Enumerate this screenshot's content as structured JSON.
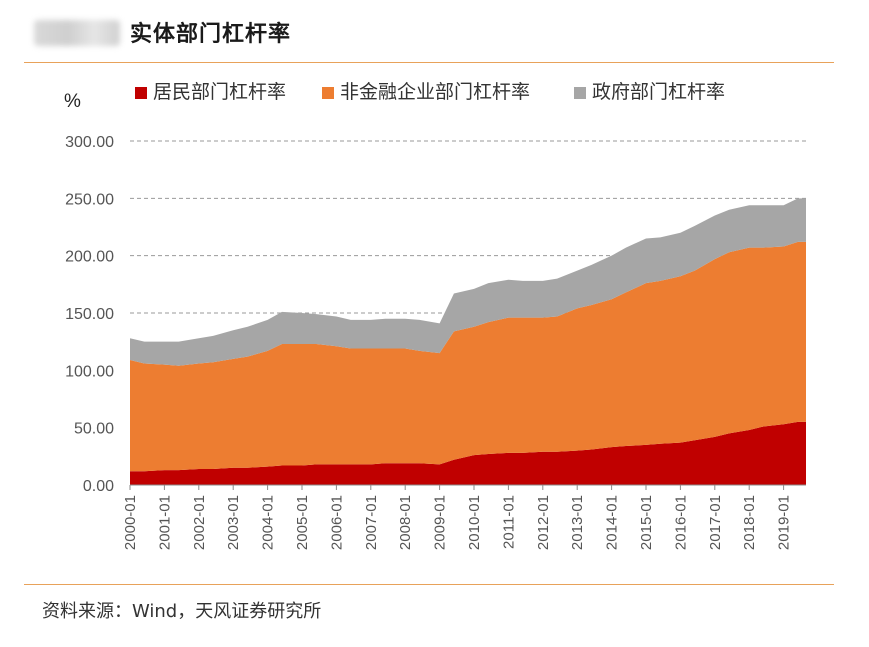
{
  "header": {
    "title": "实体部门杠杆率"
  },
  "source_note": "资料来源：Wind，天风证券研究所",
  "chart_data": {
    "type": "area",
    "stacked": true,
    "unit_label": "%",
    "ylim": [
      0,
      300
    ],
    "yticks": [
      "0.00",
      "50.00",
      "100.00",
      "150.00",
      "200.00",
      "250.00",
      "300.00"
    ],
    "xticks": [
      "2000-01",
      "2001-01",
      "2002-01",
      "2003-01",
      "2004-01",
      "2005-01",
      "2006-01",
      "2007-01",
      "2008-01",
      "2009-01",
      "2010-01",
      "2011-01",
      "2012-01",
      "2013-01",
      "2014-01",
      "2015-01",
      "2016-01",
      "2017-01",
      "2018-01",
      "2019-01"
    ],
    "grid": "horizontal-dashed",
    "legend_position": "top",
    "x": [
      "2000-01",
      "2000-06",
      "2001-01",
      "2001-06",
      "2002-01",
      "2002-06",
      "2003-01",
      "2003-06",
      "2004-01",
      "2004-06",
      "2005-01",
      "2005-06",
      "2006-01",
      "2006-06",
      "2007-01",
      "2007-06",
      "2008-01",
      "2008-06",
      "2009-01",
      "2009-06",
      "2010-01",
      "2010-06",
      "2011-01",
      "2011-06",
      "2012-01",
      "2012-06",
      "2013-01",
      "2013-06",
      "2014-01",
      "2014-06",
      "2015-01",
      "2015-06",
      "2016-01",
      "2016-06",
      "2017-01",
      "2017-06",
      "2018-01",
      "2018-06",
      "2019-01",
      "2019-06"
    ],
    "series": [
      {
        "name": "居民部门杠杆率",
        "color": "#c00000",
        "values": [
          12,
          12,
          13,
          13,
          14,
          14,
          15,
          15,
          16,
          17,
          17,
          18,
          18,
          18,
          18,
          19,
          19,
          19,
          18,
          22,
          26,
          27,
          28,
          28,
          29,
          29,
          30,
          31,
          33,
          34,
          35,
          36,
          37,
          39,
          42,
          45,
          48,
          51,
          53,
          55
        ]
      },
      {
        "name": "非金融企业部门杠杆率",
        "color": "#ed7d31",
        "values": [
          97,
          94,
          92,
          91,
          92,
          93,
          95,
          97,
          101,
          106,
          106,
          105,
          103,
          101,
          101,
          100,
          100,
          98,
          97,
          112,
          112,
          115,
          118,
          118,
          117,
          118,
          124,
          126,
          129,
          134,
          141,
          142,
          145,
          148,
          155,
          158,
          159,
          156,
          155,
          157
        ]
      },
      {
        "name": "政府部门杠杆率",
        "color": "#a6a6a6",
        "values": [
          19,
          19,
          20,
          21,
          22,
          23,
          25,
          26,
          27,
          28,
          27,
          26,
          26,
          25,
          25,
          26,
          26,
          27,
          26,
          33,
          33,
          34,
          33,
          32,
          32,
          33,
          33,
          35,
          38,
          39,
          39,
          38,
          38,
          39,
          38,
          37,
          37,
          37,
          36,
          38
        ]
      }
    ]
  }
}
